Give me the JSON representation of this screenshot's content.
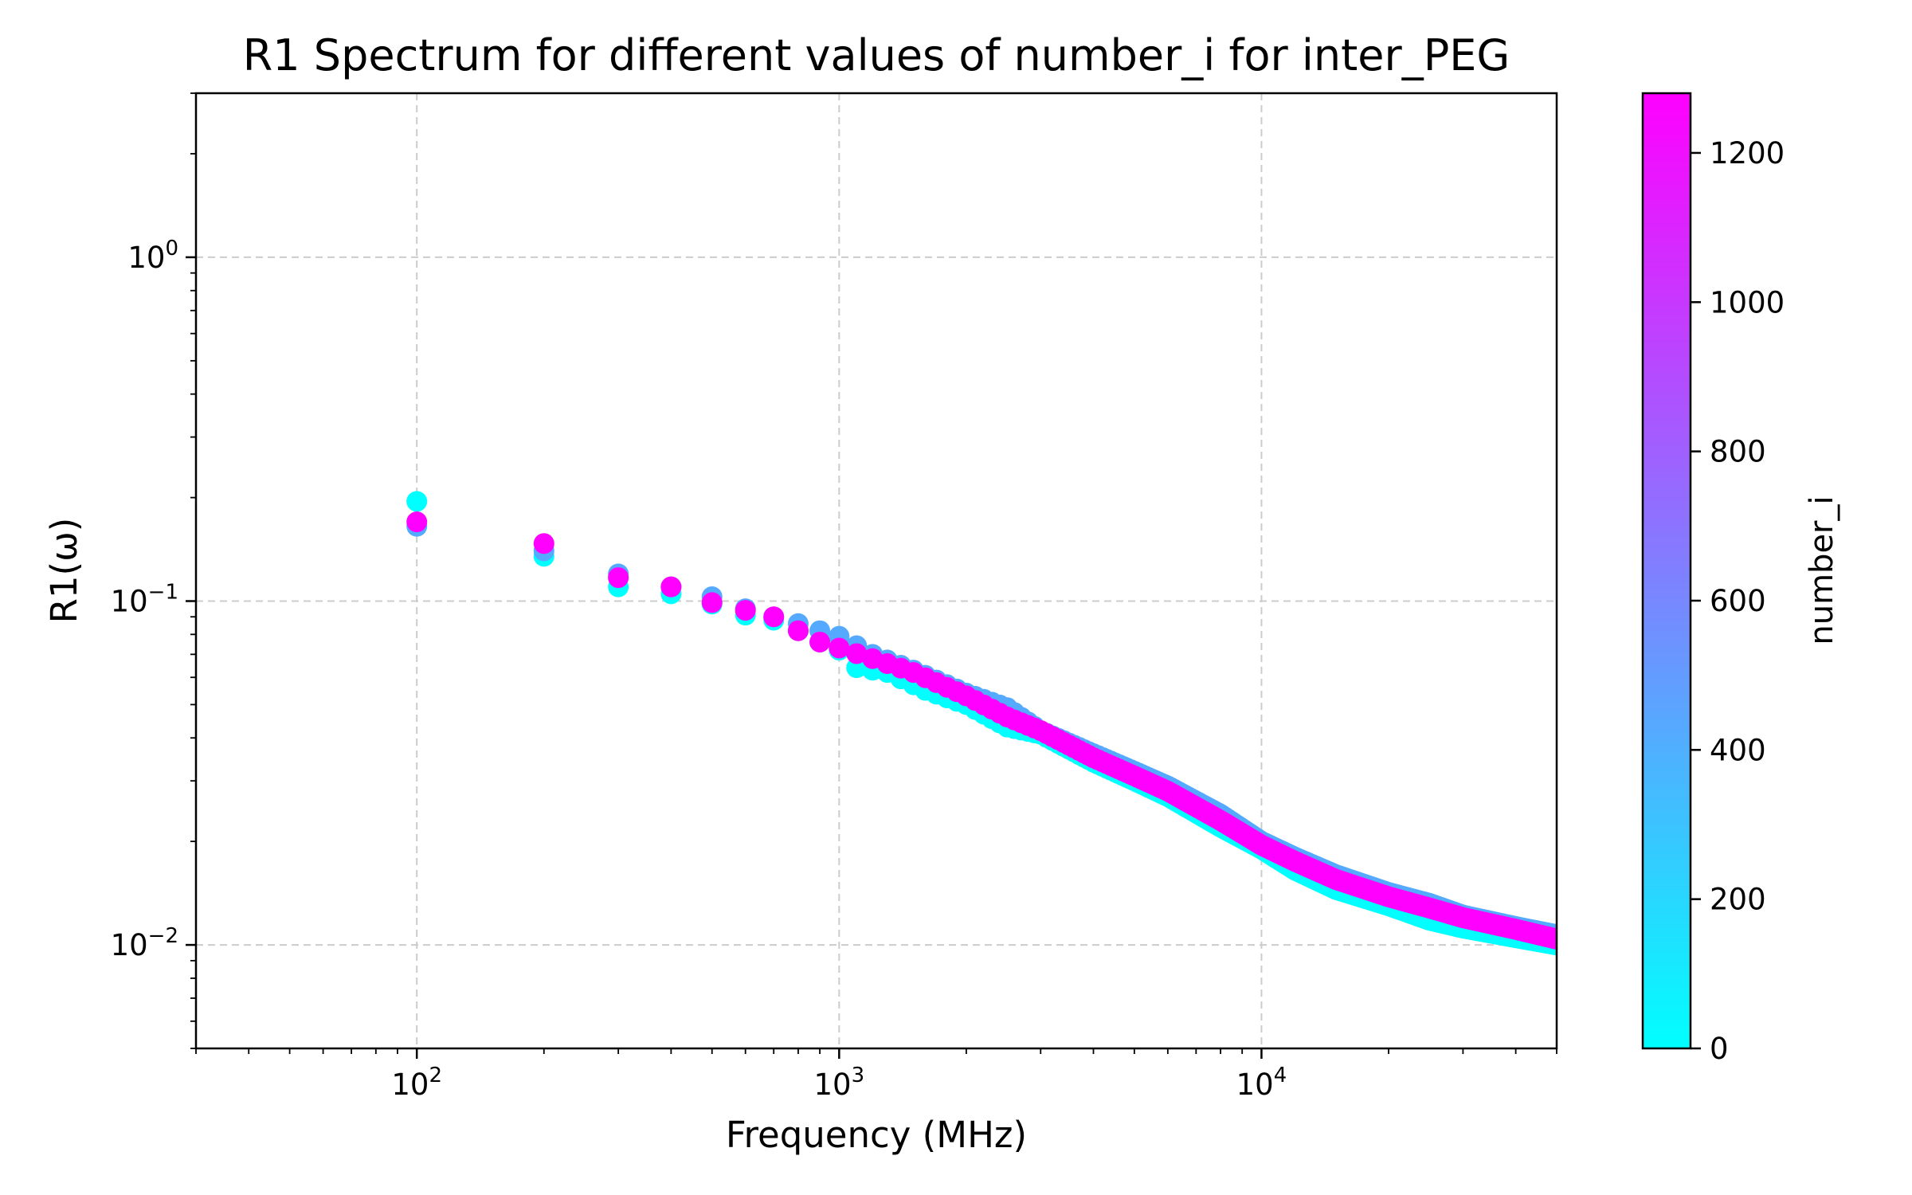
{
  "chart_data": {
    "type": "scatter",
    "title": "R1 Spectrum for different values of number_i for inter_PEG",
    "xlabel": "Frequency (MHz)",
    "ylabel": "R1(ω)",
    "xscale": "log",
    "yscale": "log",
    "xlim": [
      30,
      50000
    ],
    "ylim": [
      0.005,
      3
    ],
    "grid": true,
    "x_ticks": [
      {
        "base": "10",
        "exp": "2",
        "value": 100
      },
      {
        "base": "10",
        "exp": "3",
        "value": 1000
      },
      {
        "base": "10",
        "exp": "4",
        "value": 10000
      }
    ],
    "y_ticks": [
      {
        "base": "10",
        "exp": "0",
        "value": 1
      },
      {
        "base": "10",
        "exp": "−1",
        "value": 0.1
      },
      {
        "base": "10",
        "exp": "−2",
        "value": 0.01
      }
    ],
    "colorbar": {
      "label": "number_i",
      "min": 0,
      "max": 1280,
      "colormap": [
        "#00ffff",
        "#ff00ff"
      ],
      "ticks": [
        "0",
        "200",
        "400",
        "600",
        "800",
        "1000",
        "1200"
      ],
      "tick_values": [
        0,
        200,
        400,
        600,
        800,
        1000,
        1200
      ]
    },
    "series": [
      {
        "number_i": 0,
        "color": "#00ffff",
        "points": [
          [
            100,
            0.195
          ],
          [
            200,
            0.135
          ],
          [
            300,
            0.11
          ],
          [
            400,
            0.105
          ],
          [
            500,
            0.098
          ],
          [
            600,
            0.091
          ],
          [
            700,
            0.088
          ],
          [
            800,
            0.082
          ],
          [
            900,
            0.076
          ],
          [
            1000,
            0.072
          ],
          [
            1100,
            0.064
          ],
          [
            1300,
            0.062
          ],
          [
            1600,
            0.055
          ],
          [
            2000,
            0.05
          ],
          [
            2500,
            0.043
          ],
          [
            3000,
            0.041
          ],
          [
            4000,
            0.034
          ],
          [
            5000,
            0.03
          ],
          [
            6000,
            0.027
          ],
          [
            8000,
            0.022
          ],
          [
            10000,
            0.019
          ],
          [
            12000,
            0.0165
          ],
          [
            15000,
            0.0145
          ],
          [
            20000,
            0.013
          ],
          [
            25000,
            0.0118
          ],
          [
            30000,
            0.0112
          ],
          [
            40000,
            0.0105
          ],
          [
            50000,
            0.01
          ]
        ]
      },
      {
        "number_i": 400,
        "color": "#55aaff",
        "points": [
          [
            100,
            0.165
          ],
          [
            200,
            0.14
          ],
          [
            300,
            0.12
          ],
          [
            400,
            0.11
          ],
          [
            500,
            0.103
          ],
          [
            600,
            0.095
          ],
          [
            700,
            0.09
          ],
          [
            800,
            0.086
          ],
          [
            900,
            0.082
          ],
          [
            1000,
            0.079
          ],
          [
            1200,
            0.07
          ],
          [
            1500,
            0.063
          ],
          [
            2000,
            0.054
          ],
          [
            2500,
            0.049
          ],
          [
            3000,
            0.042
          ],
          [
            4000,
            0.036
          ],
          [
            5000,
            0.032
          ],
          [
            6000,
            0.029
          ],
          [
            8000,
            0.024
          ],
          [
            10000,
            0.02
          ],
          [
            12000,
            0.018
          ],
          [
            15000,
            0.016
          ],
          [
            20000,
            0.0142
          ],
          [
            25000,
            0.0132
          ],
          [
            30000,
            0.0122
          ],
          [
            40000,
            0.0113
          ],
          [
            50000,
            0.0107
          ]
        ]
      },
      {
        "number_i": 1280,
        "color": "#ff00ff",
        "points": [
          [
            100,
            0.17
          ],
          [
            200,
            0.147
          ],
          [
            300,
            0.117
          ],
          [
            400,
            0.11
          ],
          [
            500,
            0.099
          ],
          [
            600,
            0.094
          ],
          [
            700,
            0.09
          ],
          [
            800,
            0.082
          ],
          [
            900,
            0.076
          ],
          [
            1000,
            0.073
          ],
          [
            1200,
            0.068
          ],
          [
            1500,
            0.062
          ],
          [
            2000,
            0.053
          ],
          [
            2500,
            0.046
          ],
          [
            3000,
            0.042
          ],
          [
            4000,
            0.035
          ],
          [
            5000,
            0.031
          ],
          [
            6000,
            0.028
          ],
          [
            8000,
            0.023
          ],
          [
            10000,
            0.0195
          ],
          [
            12000,
            0.0175
          ],
          [
            15000,
            0.0155
          ],
          [
            20000,
            0.0138
          ],
          [
            25000,
            0.0128
          ],
          [
            30000,
            0.012
          ],
          [
            40000,
            0.0111
          ],
          [
            50000,
            0.0104
          ]
        ]
      }
    ]
  }
}
